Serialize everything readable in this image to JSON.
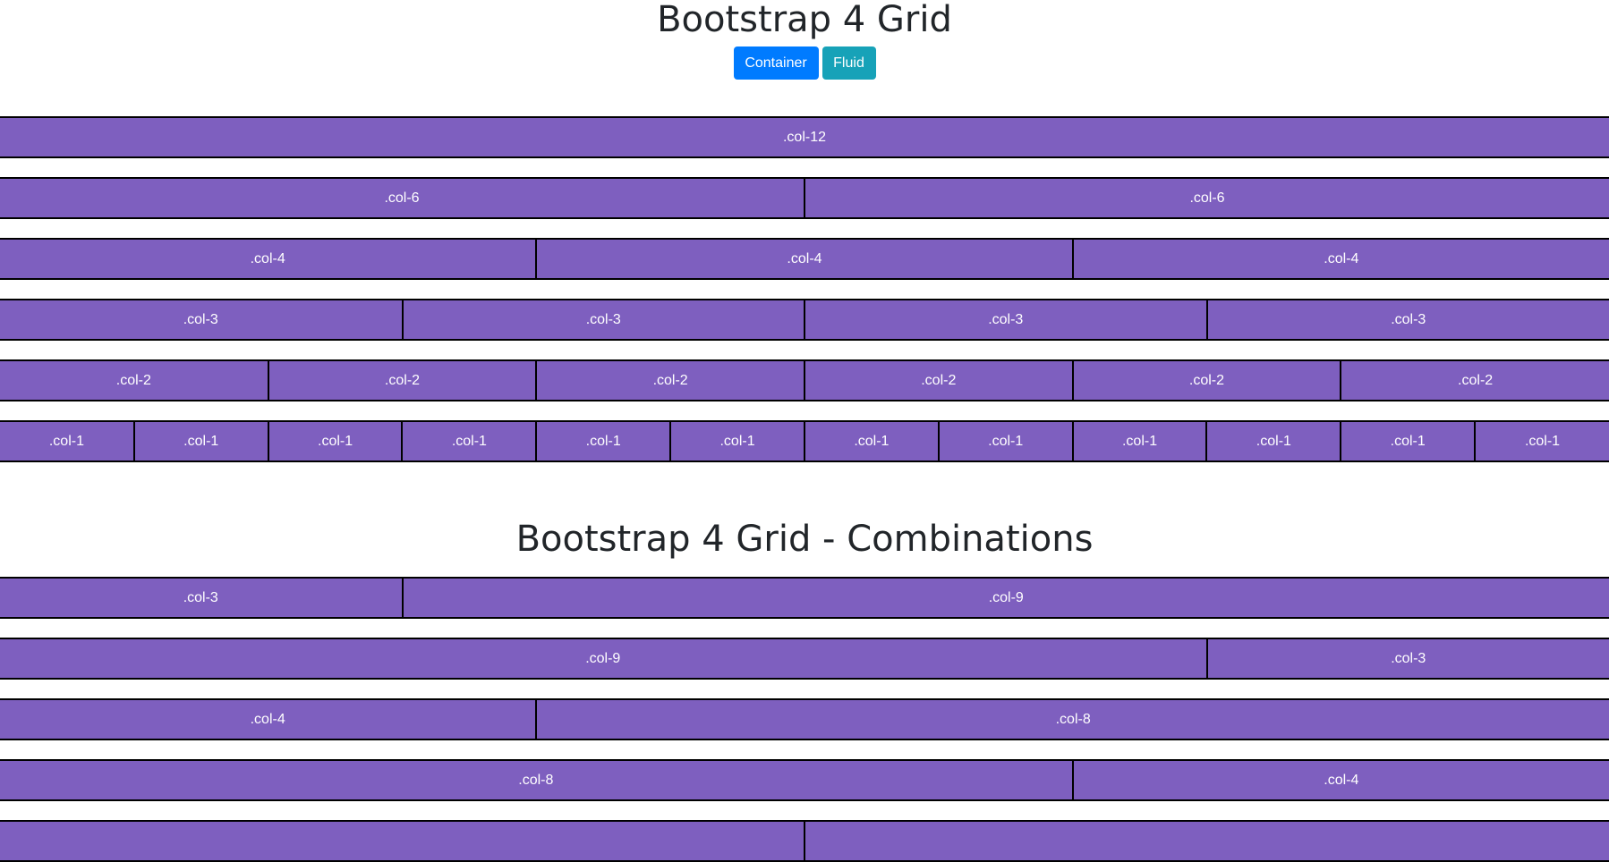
{
  "titles": {
    "main": "Bootstrap 4 Grid",
    "combinations": "Bootstrap 4 Grid - Combinations"
  },
  "buttons": {
    "container": "Container",
    "fluid": "Fluid"
  },
  "colors": {
    "column_fill": "#7e5fbf",
    "column_border": "#000000",
    "primary": "#007bff",
    "info": "#17a2b8"
  },
  "grid_rows": [
    {
      "cols": [
        {
          "span": 12,
          "label": ".col-12"
        }
      ]
    },
    {
      "cols": [
        {
          "span": 6,
          "label": ".col-6"
        },
        {
          "span": 6,
          "label": ".col-6"
        }
      ]
    },
    {
      "cols": [
        {
          "span": 4,
          "label": ".col-4"
        },
        {
          "span": 4,
          "label": ".col-4"
        },
        {
          "span": 4,
          "label": ".col-4"
        }
      ]
    },
    {
      "cols": [
        {
          "span": 3,
          "label": ".col-3"
        },
        {
          "span": 3,
          "label": ".col-3"
        },
        {
          "span": 3,
          "label": ".col-3"
        },
        {
          "span": 3,
          "label": ".col-3"
        }
      ]
    },
    {
      "cols": [
        {
          "span": 2,
          "label": ".col-2"
        },
        {
          "span": 2,
          "label": ".col-2"
        },
        {
          "span": 2,
          "label": ".col-2"
        },
        {
          "span": 2,
          "label": ".col-2"
        },
        {
          "span": 2,
          "label": ".col-2"
        },
        {
          "span": 2,
          "label": ".col-2"
        }
      ]
    },
    {
      "cols": [
        {
          "span": 1,
          "label": ".col-1"
        },
        {
          "span": 1,
          "label": ".col-1"
        },
        {
          "span": 1,
          "label": ".col-1"
        },
        {
          "span": 1,
          "label": ".col-1"
        },
        {
          "span": 1,
          "label": ".col-1"
        },
        {
          "span": 1,
          "label": ".col-1"
        },
        {
          "span": 1,
          "label": ".col-1"
        },
        {
          "span": 1,
          "label": ".col-1"
        },
        {
          "span": 1,
          "label": ".col-1"
        },
        {
          "span": 1,
          "label": ".col-1"
        },
        {
          "span": 1,
          "label": ".col-1"
        },
        {
          "span": 1,
          "label": ".col-1"
        }
      ]
    }
  ],
  "combination_rows": [
    {
      "cols": [
        {
          "span": 3,
          "label": ".col-3"
        },
        {
          "span": 9,
          "label": ".col-9"
        }
      ]
    },
    {
      "cols": [
        {
          "span": 9,
          "label": ".col-9"
        },
        {
          "span": 3,
          "label": ".col-3"
        }
      ]
    },
    {
      "cols": [
        {
          "span": 4,
          "label": ".col-4"
        },
        {
          "span": 8,
          "label": ".col-8"
        }
      ]
    },
    {
      "cols": [
        {
          "span": 8,
          "label": ".col-8"
        },
        {
          "span": 4,
          "label": ".col-4"
        }
      ]
    },
    {
      "cols": [
        {
          "span": 6,
          "label": ""
        },
        {
          "span": 6,
          "label": ""
        }
      ]
    }
  ]
}
